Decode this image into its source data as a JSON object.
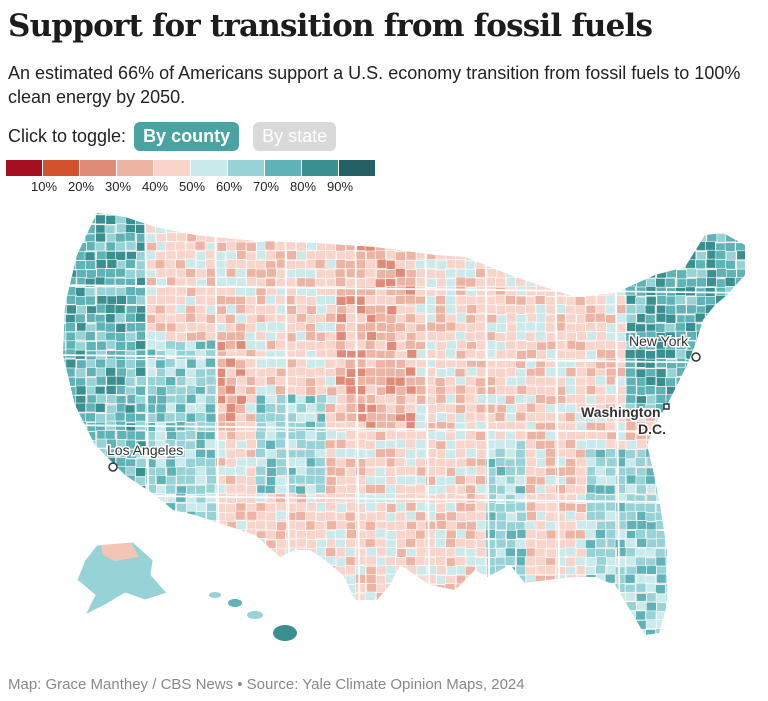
{
  "title": "Support for transition from fossil fuels",
  "subtitle": "An estimated 66% of Americans support a U.S. economy transition from fossil fuels to 100% clean energy by 2050.",
  "toggle": {
    "prompt": "Click to toggle:",
    "by_county": "By county",
    "by_state": "By state",
    "selected": "By county"
  },
  "legend": {
    "colors": [
      "#a50f22",
      "#d3522e",
      "#e08a78",
      "#edb3a3",
      "#f8d4cb",
      "#cbeaec",
      "#97d2d6",
      "#5fb3b6",
      "#3a8f91",
      "#245f63"
    ],
    "ticks": [
      "10%",
      "20%",
      "30%",
      "40%",
      "50%",
      "60%",
      "70%",
      "80%",
      "90%"
    ]
  },
  "cities": {
    "new_york": "New York",
    "washington": "Washington\nD.C.",
    "los_angeles": "Los Angeles"
  },
  "footer": "Map: Grace Manthey / CBS News • Source: Yale Climate Opinion Maps, 2024"
}
